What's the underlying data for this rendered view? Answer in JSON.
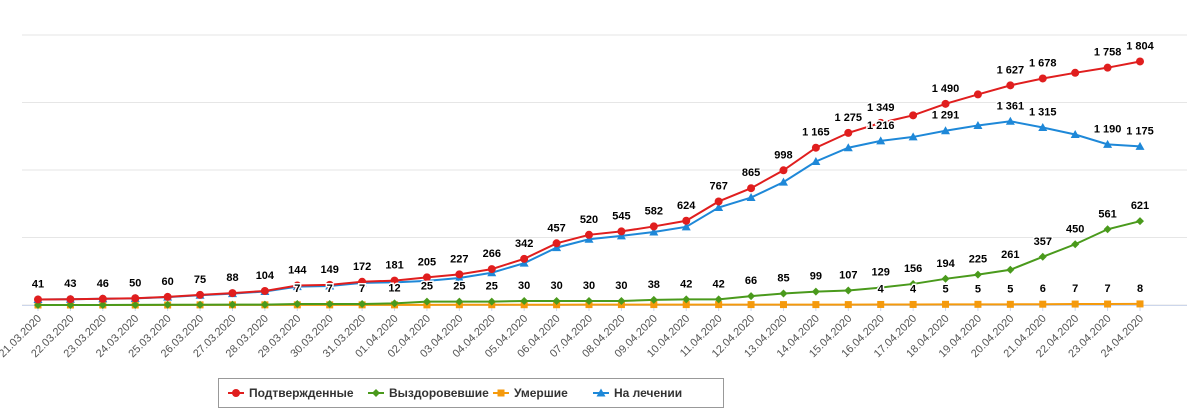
{
  "chart_data": {
    "type": "line",
    "categories": [
      "21.03.2020",
      "22.03.2020",
      "23.03.2020",
      "24.03.2020",
      "25.03.2020",
      "26.03.2020",
      "27.03.2020",
      "28.03.2020",
      "29.03.2020",
      "30.03.2020",
      "31.03.2020",
      "01.04.2020",
      "02.04.2020",
      "03.04.2020",
      "04.04.2020",
      "05.04.2020",
      "06.04.2020",
      "07.04.2020",
      "08.04.2020",
      "09.04.2020",
      "10.04.2020",
      "11.04.2020",
      "12.04.2020",
      "13.04.2020",
      "14.04.2020",
      "15.04.2020",
      "16.04.2020",
      "17.04.2020",
      "18.04.2020",
      "19.04.2020",
      "20.04.2020",
      "21.04.2020",
      "22.04.2020",
      "23.04.2020",
      "24.04.2020"
    ],
    "series": [
      {
        "name": "Подтвержденные",
        "color": "#e01e1e",
        "marker": "circle",
        "values": [
          41,
          43,
          46,
          50,
          60,
          75,
          88,
          104,
          144,
          149,
          172,
          181,
          205,
          227,
          266,
          342,
          457,
          520,
          545,
          582,
          624,
          767,
          865,
          998,
          1165,
          1275,
          1349,
          1405,
          1490,
          1560,
          1627,
          1678,
          1720,
          1758,
          1804
        ],
        "value_labels": [
          "41",
          "43",
          "46",
          "50",
          "60",
          "75",
          "88",
          "104",
          "144",
          "149",
          "172",
          "181",
          "205",
          "227",
          "266",
          "342",
          "457",
          "520",
          "545",
          "582",
          "624",
          "767",
          "865",
          "998",
          "1 165",
          "1 275",
          "1 349",
          null,
          "1 490",
          null,
          "1 627",
          "1 678",
          null,
          "1 758",
          "1 804"
        ]
      },
      {
        "name": "Выздоровевшие",
        "color": "#4a9a1c",
        "marker": "diamond",
        "values": [
          0,
          0,
          0,
          1,
          2,
          2,
          3,
          3,
          7,
          7,
          7,
          12,
          25,
          25,
          25,
          30,
          30,
          30,
          30,
          38,
          42,
          42,
          66,
          85,
          99,
          107,
          129,
          156,
          194,
          225,
          261,
          357,
          450,
          561,
          621
        ],
        "value_labels": [
          null,
          null,
          null,
          null,
          null,
          null,
          null,
          null,
          "7",
          "7",
          "7",
          "12",
          "25",
          "25",
          "25",
          "30",
          "30",
          "30",
          "30",
          "38",
          "42",
          "42",
          "66",
          "85",
          "99",
          "107",
          "129",
          "156",
          "194",
          "225",
          "261",
          "357",
          "450",
          "561",
          "621"
        ]
      },
      {
        "name": "Умершие",
        "color": "#f59a0c",
        "marker": "square",
        "values": [
          0,
          0,
          0,
          0,
          0,
          1,
          1,
          1,
          1,
          1,
          1,
          1,
          1,
          2,
          2,
          2,
          2,
          3,
          3,
          3,
          3,
          3,
          3,
          3,
          3,
          3,
          4,
          4,
          5,
          5,
          5,
          6,
          7,
          7,
          8
        ],
        "value_labels": [
          null,
          null,
          null,
          null,
          null,
          null,
          null,
          null,
          null,
          null,
          null,
          null,
          null,
          null,
          null,
          null,
          null,
          null,
          null,
          null,
          null,
          null,
          null,
          null,
          null,
          null,
          "4",
          "4",
          "5",
          "5",
          "5",
          "6",
          "7",
          "7",
          "8"
        ]
      },
      {
        "name": "На лечении",
        "color": "#1e88d8",
        "marker": "triangle",
        "values": [
          41,
          43,
          46,
          49,
          58,
          72,
          84,
          100,
          136,
          141,
          164,
          168,
          179,
          200,
          239,
          310,
          425,
          487,
          512,
          541,
          579,
          722,
          796,
          910,
          1063,
          1165,
          1216,
          1245,
          1291,
          1330,
          1361,
          1315,
          1263,
          1190,
          1175
        ],
        "value_labels": [
          null,
          null,
          null,
          null,
          null,
          null,
          null,
          null,
          null,
          null,
          null,
          null,
          null,
          null,
          null,
          null,
          null,
          null,
          null,
          null,
          null,
          null,
          null,
          null,
          null,
          null,
          "1 216",
          null,
          "1 291",
          null,
          "1 361",
          "1 315",
          null,
          "1 190",
          "1 175"
        ]
      }
    ],
    "ylim": [
      0,
      2000
    ],
    "yticks": [
      0,
      500,
      1000,
      1500,
      2000
    ],
    "grid": true,
    "legend": "bottom"
  }
}
